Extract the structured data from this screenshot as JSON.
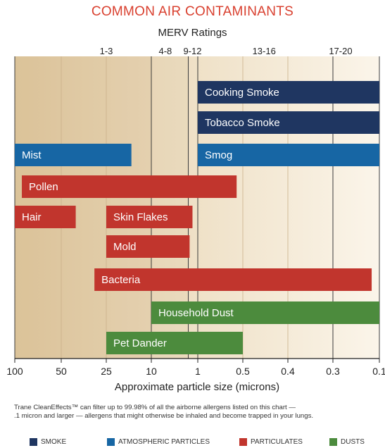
{
  "chart_data": {
    "type": "bar",
    "title": "COMMON AIR CONTAMINANTS",
    "merv_title": "MERV Ratings",
    "merv_ticks": [
      {
        "label": "1-3",
        "at": 25
      },
      {
        "label": "4-8",
        "at": 5
      },
      {
        "label": "9-12",
        "at": 1.3
      },
      {
        "label": "13-16",
        "at": 0.45
      },
      {
        "label": "17-20",
        "at": 0.25
      }
    ],
    "xlabel": "Approximate particle size (microns)",
    "x_ticks": [
      100,
      50,
      25,
      10,
      1,
      0.5,
      0.4,
      0.3,
      0.1
    ],
    "x_tick_labels": [
      "100",
      "50",
      "25",
      "10",
      "1",
      "0.5",
      "0.4",
      "0.3",
      "0.1"
    ],
    "x_direction": "decreasing",
    "grid": true,
    "colors": {
      "smoke": "#1f3661",
      "atmospheric": "#1766a4",
      "particulates": "#c1352d",
      "dusts": "#4c8b3d",
      "title": "#d9402f"
    },
    "bars": [
      {
        "label": "Cooking Smoke",
        "category": "smoke",
        "row": 0,
        "from": 1,
        "to": 0.1
      },
      {
        "label": "Tobacco Smoke",
        "category": "smoke",
        "row": 1,
        "from": 1,
        "to": 0.1
      },
      {
        "label": "Mist",
        "category": "atmospheric",
        "row": 2,
        "from": 100,
        "to": 15
      },
      {
        "label": "Smog",
        "category": "atmospheric",
        "row": 2,
        "from": 1,
        "to": 0.1
      },
      {
        "label": "Pollen",
        "category": "particulates",
        "row": 3,
        "from": 90,
        "to": 0.55
      },
      {
        "label": "Hair",
        "category": "particulates",
        "row": 4,
        "from": 100,
        "to": 40
      },
      {
        "label": "Skin Flakes",
        "category": "particulates",
        "row": 4,
        "from": 25,
        "to": 1.3
      },
      {
        "label": "Mold",
        "category": "particulates",
        "row": 5,
        "from": 25,
        "to": 1.5
      },
      {
        "label": "Bacteria",
        "category": "particulates",
        "row": 6,
        "from": 30,
        "to": 0.12
      },
      {
        "label": "Household Dust",
        "category": "dusts",
        "row": 7,
        "from": 10,
        "to": 0.1
      },
      {
        "label": "Pet Dander",
        "category": "dusts",
        "row": 8,
        "from": 25,
        "to": 0.5
      }
    ]
  },
  "footnote": {
    "line1": "Trane CleanEffects™ can filter up to 99.98% of all the airborne allergens listed on this chart —",
    "line2": ".1 micron and larger — allergens that might otherwise be inhaled and become trapped in your lungs."
  },
  "legend": [
    {
      "label": "SMOKE",
      "category": "smoke"
    },
    {
      "label": "ATMOSPHERIC PARTICLES",
      "category": "atmospheric"
    },
    {
      "label": "PARTICULATES",
      "category": "particulates"
    },
    {
      "label": "DUSTS",
      "category": "dusts"
    }
  ]
}
